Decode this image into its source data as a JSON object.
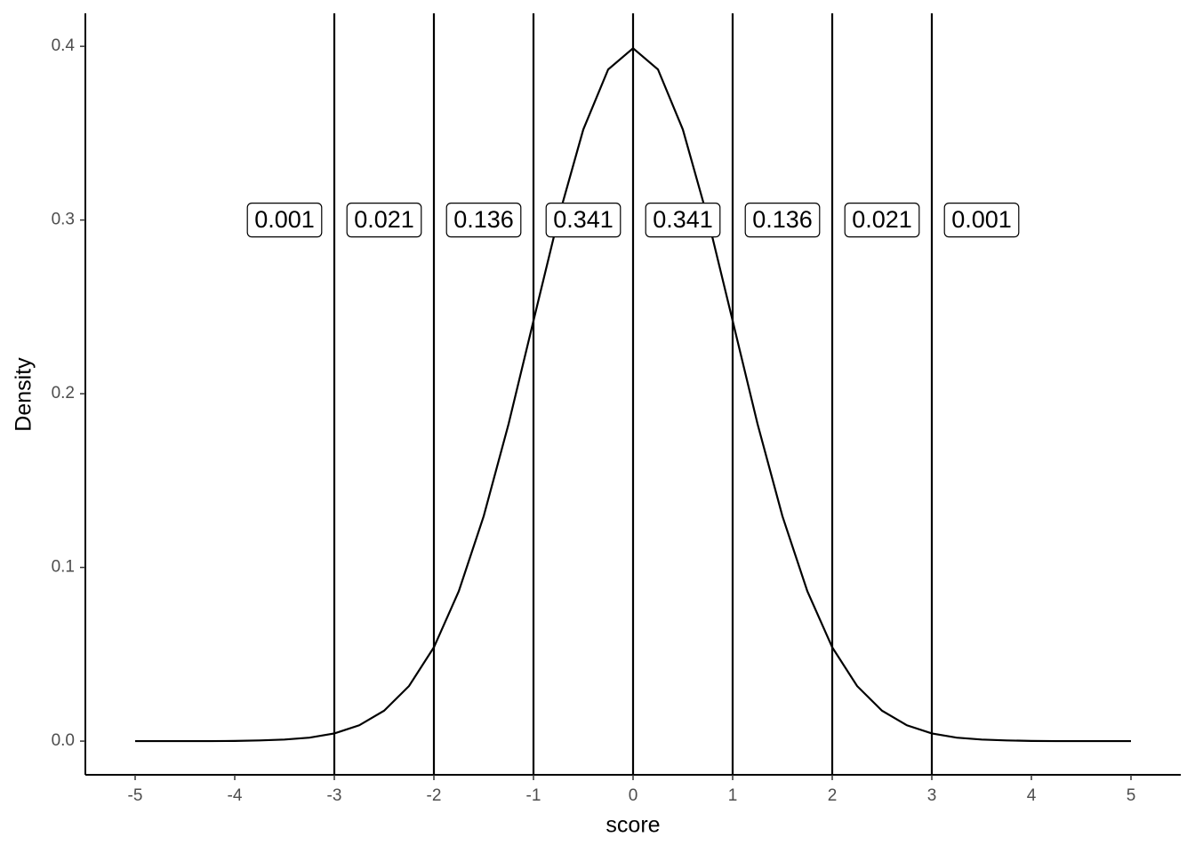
{
  "chart_data": {
    "type": "line",
    "x_label": "score",
    "y_label": "Density",
    "x": [
      -5,
      -4.75,
      -4.5,
      -4.25,
      -4,
      -3.75,
      -3.5,
      -3.25,
      -3,
      -2.75,
      -2.5,
      -2.25,
      -2,
      -1.75,
      -1.5,
      -1.25,
      -1,
      -0.75,
      -0.5,
      -0.25,
      0,
      0.25,
      0.5,
      0.75,
      1,
      1.25,
      1.5,
      1.75,
      2,
      2.25,
      2.5,
      2.75,
      3,
      3.25,
      3.5,
      3.75,
      4,
      4.25,
      4.5,
      4.75,
      5
    ],
    "values": [
      0,
      0,
      0,
      0,
      0.0001,
      0.0004,
      0.0009,
      0.002,
      0.0044,
      0.0091,
      0.0175,
      0.0317,
      0.054,
      0.0863,
      0.1295,
      0.1826,
      0.242,
      0.3011,
      0.3521,
      0.3867,
      0.3989,
      0.3867,
      0.3521,
      0.3011,
      0.242,
      0.1826,
      0.1295,
      0.0863,
      0.054,
      0.0317,
      0.0175,
      0.0091,
      0.0044,
      0.002,
      0.0009,
      0.0004,
      0.0001,
      0,
      0,
      0,
      0
    ],
    "color": "#000000",
    "vlines": [
      -3,
      -2,
      -1,
      0,
      1,
      2,
      3
    ],
    "annotations": [
      {
        "x": -3.5,
        "y": 0.3,
        "text": "0.001"
      },
      {
        "x": -2.5,
        "y": 0.3,
        "text": "0.021"
      },
      {
        "x": -1.5,
        "y": 0.3,
        "text": "0.136"
      },
      {
        "x": -0.5,
        "y": 0.3,
        "text": "0.341"
      },
      {
        "x": 0.5,
        "y": 0.3,
        "text": "0.341"
      },
      {
        "x": 1.5,
        "y": 0.3,
        "text": "0.136"
      },
      {
        "x": 2.5,
        "y": 0.3,
        "text": "0.021"
      },
      {
        "x": 3.5,
        "y": 0.3,
        "text": "0.001"
      }
    ],
    "xlim": [
      -5.5,
      5.5
    ],
    "ylim": [
      -0.0194,
      0.419
    ],
    "xticks": [
      -5,
      -4,
      -3,
      -2,
      -1,
      0,
      1,
      2,
      3,
      4,
      5
    ],
    "yticks": [
      {
        "value": 0,
        "label": "0.0"
      },
      0.1,
      0.2,
      0.3,
      0.4
    ],
    "grid": false
  }
}
